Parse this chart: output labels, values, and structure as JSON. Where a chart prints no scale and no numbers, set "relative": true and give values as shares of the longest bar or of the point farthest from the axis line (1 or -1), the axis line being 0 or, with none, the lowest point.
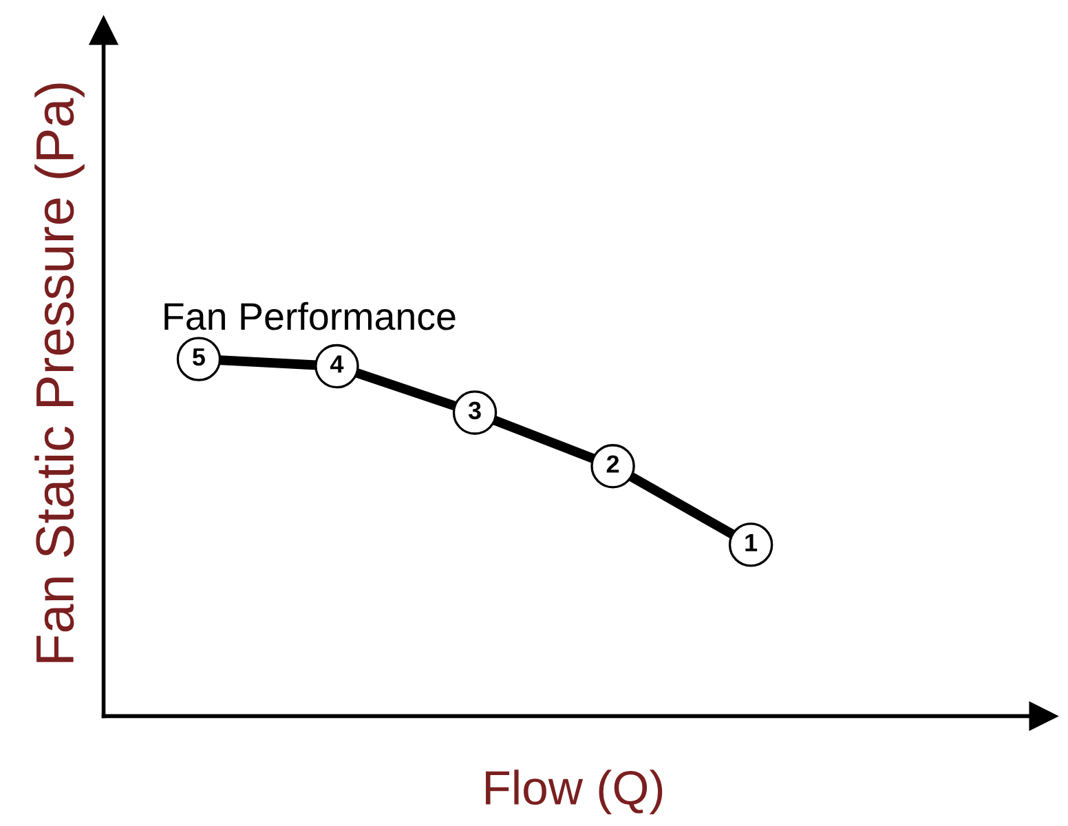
{
  "chart_data": {
    "type": "line",
    "relative": true,
    "xlabel": "Flow (Q)",
    "ylabel": "Fan Static Pressure (Pa)",
    "categories": [
      null,
      null,
      null,
      null,
      null
    ],
    "series": [
      {
        "name": "Fan Performance",
        "color": "#000000",
        "values": [
          1,
          0.98,
          0.85,
          0.7,
          0.48
        ]
      }
    ],
    "annotations": [
      {
        "text": "5",
        "y": 1
      },
      {
        "text": "4",
        "y": 0.98
      },
      {
        "text": "3",
        "y": 0.85
      },
      {
        "text": "2",
        "y": 0.7
      },
      {
        "text": "1",
        "y": 0.48
      }
    ],
    "marker": "circle",
    "line_style": "solid",
    "legend": false
  }
}
